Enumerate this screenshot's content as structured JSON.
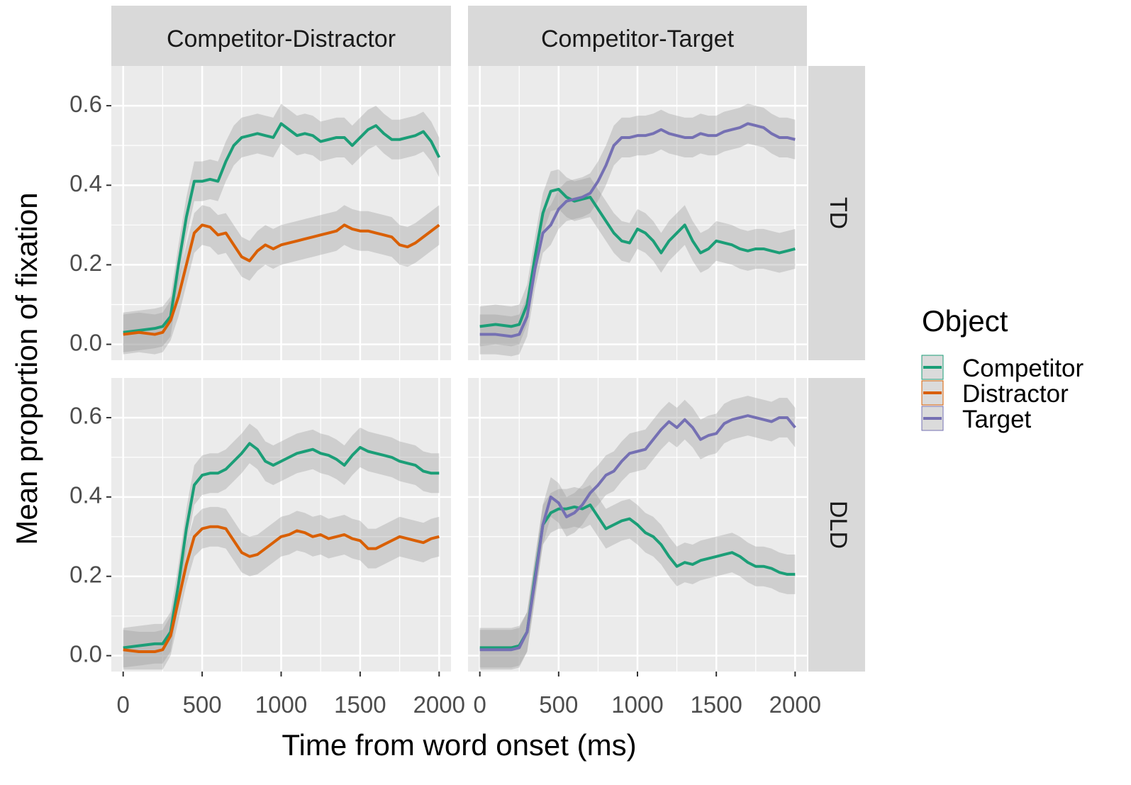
{
  "chart_data": {
    "type": "line",
    "title": "",
    "xlabel": "Time from word onset (ms)",
    "ylabel": "Mean proportion of fixation",
    "xlim": [
      -75,
      2075
    ],
    "ylim": [
      -0.04,
      0.7
    ],
    "x_ticks": [
      0,
      500,
      1000,
      1500,
      2000
    ],
    "x_tick_labels": [
      "0",
      "500",
      "1000",
      "1500",
      "2000"
    ],
    "y_ticks": [
      0.0,
      0.2,
      0.4,
      0.6
    ],
    "y_tick_labels": [
      "0.0",
      "0.2",
      "0.4",
      "0.6"
    ],
    "grid": true,
    "facet_columns": [
      "Competitor-Distractor",
      "Competitor-Target"
    ],
    "facet_rows": [
      "TD",
      "DLD"
    ],
    "legend": {
      "title": "Object",
      "position": "right",
      "entries": [
        {
          "name": "Competitor",
          "color": "#1b9e77"
        },
        {
          "name": "Distractor",
          "color": "#d95f02"
        },
        {
          "name": "Target",
          "color": "#7570b3"
        }
      ]
    },
    "colors": {
      "Competitor": "#1b9e77",
      "Distractor": "#d95f02",
      "Target": "#7570b3",
      "ribbon": "#999999",
      "panel_bg": "#ebebeb",
      "strip_bg": "#d9d9d9"
    },
    "panels": [
      {
        "column": "Competitor-Distractor",
        "row": "TD",
        "series": [
          {
            "name": "Competitor",
            "band": 0.05,
            "x": [
              0,
              100,
              200,
              250,
              300,
              350,
              400,
              450,
              500,
              550,
              600,
              650,
              700,
              750,
              800,
              850,
              900,
              950,
              1000,
              1050,
              1100,
              1150,
              1200,
              1250,
              1300,
              1350,
              1400,
              1450,
              1500,
              1550,
              1600,
              1650,
              1700,
              1750,
              1800,
              1850,
              1900,
              1950,
              2000
            ],
            "y": [
              0.03,
              0.035,
              0.04,
              0.045,
              0.07,
              0.2,
              0.32,
              0.41,
              0.41,
              0.415,
              0.41,
              0.46,
              0.5,
              0.52,
              0.525,
              0.53,
              0.525,
              0.52,
              0.555,
              0.54,
              0.525,
              0.53,
              0.525,
              0.51,
              0.515,
              0.52,
              0.52,
              0.5,
              0.52,
              0.54,
              0.55,
              0.53,
              0.515,
              0.515,
              0.52,
              0.525,
              0.535,
              0.51,
              0.47
            ]
          },
          {
            "name": "Distractor",
            "band": 0.05,
            "x": [
              0,
              100,
              200,
              250,
              300,
              350,
              400,
              450,
              500,
              550,
              600,
              650,
              700,
              750,
              800,
              850,
              900,
              950,
              1000,
              1050,
              1100,
              1150,
              1200,
              1250,
              1300,
              1350,
              1400,
              1450,
              1500,
              1550,
              1600,
              1650,
              1700,
              1750,
              1800,
              1850,
              1900,
              1950,
              2000
            ],
            "y": [
              0.025,
              0.03,
              0.025,
              0.03,
              0.06,
              0.12,
              0.2,
              0.28,
              0.3,
              0.295,
              0.275,
              0.28,
              0.25,
              0.22,
              0.21,
              0.235,
              0.25,
              0.24,
              0.25,
              0.255,
              0.26,
              0.265,
              0.27,
              0.275,
              0.28,
              0.285,
              0.3,
              0.29,
              0.285,
              0.285,
              0.28,
              0.275,
              0.27,
              0.25,
              0.245,
              0.255,
              0.27,
              0.285,
              0.3
            ]
          }
        ]
      },
      {
        "column": "Competitor-Target",
        "row": "TD",
        "series": [
          {
            "name": "Competitor",
            "band": 0.05,
            "x": [
              0,
              100,
              200,
              250,
              300,
              350,
              400,
              450,
              500,
              550,
              600,
              650,
              700,
              750,
              800,
              850,
              900,
              950,
              1000,
              1050,
              1100,
              1150,
              1200,
              1250,
              1300,
              1350,
              1400,
              1450,
              1500,
              1550,
              1600,
              1650,
              1700,
              1750,
              1800,
              1850,
              1900,
              1950,
              2000
            ],
            "y": [
              0.045,
              0.05,
              0.045,
              0.05,
              0.1,
              0.22,
              0.33,
              0.385,
              0.39,
              0.37,
              0.36,
              0.365,
              0.37,
              0.34,
              0.31,
              0.28,
              0.26,
              0.255,
              0.29,
              0.28,
              0.26,
              0.23,
              0.26,
              0.28,
              0.3,
              0.26,
              0.23,
              0.24,
              0.26,
              0.255,
              0.25,
              0.24,
              0.235,
              0.24,
              0.24,
              0.235,
              0.23,
              0.235,
              0.24
            ]
          },
          {
            "name": "Target",
            "band": 0.05,
            "x": [
              0,
              100,
              200,
              250,
              300,
              350,
              400,
              450,
              500,
              550,
              600,
              650,
              700,
              750,
              800,
              850,
              900,
              950,
              1000,
              1050,
              1100,
              1150,
              1200,
              1250,
              1300,
              1350,
              1400,
              1450,
              1500,
              1550,
              1600,
              1650,
              1700,
              1750,
              1800,
              1850,
              1900,
              1950,
              2000
            ],
            "y": [
              0.025,
              0.025,
              0.02,
              0.025,
              0.07,
              0.19,
              0.28,
              0.3,
              0.34,
              0.36,
              0.365,
              0.37,
              0.38,
              0.41,
              0.45,
              0.5,
              0.52,
              0.52,
              0.525,
              0.525,
              0.53,
              0.54,
              0.53,
              0.525,
              0.52,
              0.52,
              0.53,
              0.525,
              0.525,
              0.535,
              0.54,
              0.545,
              0.555,
              0.55,
              0.545,
              0.53,
              0.52,
              0.52,
              0.515
            ]
          }
        ]
      },
      {
        "column": "Competitor-Distractor",
        "row": "DLD",
        "series": [
          {
            "name": "Competitor",
            "band": 0.05,
            "x": [
              0,
              100,
              200,
              250,
              300,
              350,
              400,
              450,
              500,
              550,
              600,
              650,
              700,
              750,
              800,
              850,
              900,
              950,
              1000,
              1050,
              1100,
              1150,
              1200,
              1250,
              1300,
              1350,
              1400,
              1450,
              1500,
              1550,
              1600,
              1650,
              1700,
              1750,
              1800,
              1850,
              1900,
              1950,
              2000
            ],
            "y": [
              0.02,
              0.025,
              0.03,
              0.03,
              0.06,
              0.18,
              0.32,
              0.43,
              0.455,
              0.46,
              0.46,
              0.47,
              0.49,
              0.51,
              0.535,
              0.52,
              0.49,
              0.48,
              0.49,
              0.5,
              0.51,
              0.515,
              0.52,
              0.51,
              0.505,
              0.495,
              0.48,
              0.505,
              0.525,
              0.515,
              0.51,
              0.505,
              0.5,
              0.49,
              0.485,
              0.48,
              0.465,
              0.46,
              0.46
            ]
          },
          {
            "name": "Distractor",
            "band": 0.05,
            "x": [
              0,
              100,
              200,
              250,
              300,
              350,
              400,
              450,
              500,
              550,
              600,
              650,
              700,
              750,
              800,
              850,
              900,
              950,
              1000,
              1050,
              1100,
              1150,
              1200,
              1250,
              1300,
              1350,
              1400,
              1450,
              1500,
              1550,
              1600,
              1650,
              1700,
              1750,
              1800,
              1850,
              1900,
              1950,
              2000
            ],
            "y": [
              0.015,
              0.01,
              0.01,
              0.015,
              0.05,
              0.14,
              0.23,
              0.3,
              0.32,
              0.325,
              0.325,
              0.32,
              0.29,
              0.26,
              0.25,
              0.255,
              0.27,
              0.285,
              0.3,
              0.305,
              0.315,
              0.31,
              0.3,
              0.305,
              0.295,
              0.3,
              0.305,
              0.295,
              0.29,
              0.27,
              0.27,
              0.28,
              0.29,
              0.3,
              0.295,
              0.29,
              0.285,
              0.295,
              0.3
            ]
          }
        ]
      },
      {
        "column": "Competitor-Target",
        "row": "DLD",
        "series": [
          {
            "name": "Competitor",
            "band": 0.05,
            "x": [
              0,
              100,
              200,
              250,
              300,
              350,
              400,
              450,
              500,
              550,
              600,
              650,
              700,
              750,
              800,
              850,
              900,
              950,
              1000,
              1050,
              1100,
              1150,
              1200,
              1250,
              1300,
              1350,
              1400,
              1450,
              1500,
              1550,
              1600,
              1650,
              1700,
              1750,
              1800,
              1850,
              1900,
              1950,
              2000
            ],
            "y": [
              0.02,
              0.02,
              0.02,
              0.025,
              0.06,
              0.2,
              0.33,
              0.36,
              0.37,
              0.37,
              0.375,
              0.37,
              0.38,
              0.35,
              0.32,
              0.33,
              0.34,
              0.345,
              0.33,
              0.31,
              0.3,
              0.28,
              0.25,
              0.225,
              0.235,
              0.23,
              0.24,
              0.245,
              0.25,
              0.255,
              0.26,
              0.25,
              0.235,
              0.225,
              0.225,
              0.22,
              0.21,
              0.205,
              0.205
            ]
          },
          {
            "name": "Target",
            "band": 0.05,
            "x": [
              0,
              100,
              200,
              250,
              300,
              350,
              400,
              450,
              500,
              550,
              600,
              650,
              700,
              750,
              800,
              850,
              900,
              950,
              1000,
              1050,
              1100,
              1150,
              1200,
              1250,
              1300,
              1350,
              1400,
              1450,
              1500,
              1550,
              1600,
              1650,
              1700,
              1750,
              1800,
              1850,
              1900,
              1950,
              2000
            ],
            "y": [
              0.015,
              0.015,
              0.015,
              0.02,
              0.06,
              0.19,
              0.33,
              0.4,
              0.385,
              0.35,
              0.36,
              0.38,
              0.41,
              0.43,
              0.455,
              0.465,
              0.49,
              0.51,
              0.515,
              0.52,
              0.545,
              0.57,
              0.59,
              0.575,
              0.595,
              0.575,
              0.545,
              0.555,
              0.56,
              0.585,
              0.595,
              0.6,
              0.605,
              0.6,
              0.595,
              0.59,
              0.6,
              0.6,
              0.575
            ]
          }
        ]
      }
    ]
  }
}
